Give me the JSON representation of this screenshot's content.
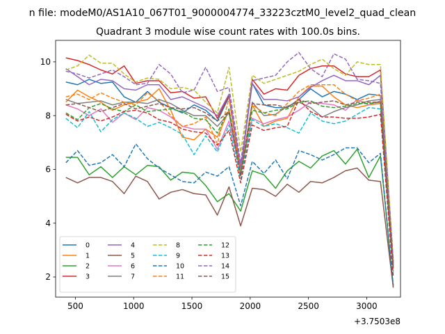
{
  "figure": {
    "suptitle": "n file: modeM0/AS1A10_067T01_9000004774_33223cztM0_level2_quad_clean",
    "title": "Quadrant 3 module wise count rates with 100.0s bins."
  },
  "chart_data": {
    "type": "line",
    "title": "Quadrant 3 module wise count rates with 100.0s bins.",
    "xlabel": "",
    "ylabel": "",
    "x_offset_label": "+3.7503e8",
    "xlim": [
      330,
      3290
    ],
    "ylim": [
      1.25,
      10.8
    ],
    "xticks": [
      500,
      1000,
      1500,
      2000,
      2500,
      3000
    ],
    "yticks": [
      2,
      4,
      6,
      8,
      10
    ],
    "grid": false,
    "legend_position": "lower-left",
    "legend_columns": 4,
    "x": [
      418,
      518,
      618,
      718,
      818,
      918,
      1018,
      1118,
      1218,
      1318,
      1418,
      1518,
      1618,
      1718,
      1818,
      1918,
      2018,
      2118,
      2218,
      2318,
      2418,
      2518,
      2618,
      2718,
      2818,
      2918,
      3018,
      3118,
      3228
    ],
    "series": [
      {
        "name": "0",
        "color": "#1f77b4",
        "style": "solid",
        "values": [
          9.25,
          9.15,
          9.35,
          9.2,
          9.25,
          8.7,
          8.5,
          8.9,
          8.5,
          8.3,
          8.1,
          8.4,
          8.2,
          7.8,
          8.7,
          6.0,
          9.2,
          8.4,
          8.3,
          8.3,
          8.6,
          9.0,
          8.7,
          8.9,
          8.8,
          8.6,
          8.8,
          8.75,
          2.5
        ]
      },
      {
        "name": "1",
        "color": "#ff7f0e",
        "style": "solid",
        "values": [
          8.5,
          8.95,
          8.7,
          8.5,
          8.2,
          8.4,
          8.5,
          8.6,
          9.0,
          8.2,
          7.2,
          7.1,
          7.5,
          7.2,
          8.2,
          5.8,
          8.4,
          7.6,
          7.8,
          7.9,
          8.7,
          9.1,
          9.1,
          8.7,
          8.4,
          8.3,
          8.4,
          8.45,
          2.4
        ]
      },
      {
        "name": "2",
        "color": "#2ca02c",
        "style": "solid",
        "values": [
          6.45,
          6.45,
          5.8,
          6.1,
          5.7,
          6.1,
          5.8,
          6.15,
          6.1,
          5.6,
          5.9,
          5.85,
          5.4,
          4.8,
          5.1,
          4.45,
          5.95,
          5.8,
          5.3,
          5.95,
          6.3,
          6.05,
          6.5,
          6.7,
          6.2,
          6.75,
          5.7,
          6.5,
          1.65
        ]
      },
      {
        "name": "3",
        "color": "#d62728",
        "style": "solid",
        "values": [
          10.15,
          10.05,
          9.9,
          9.7,
          9.55,
          9.85,
          9.2,
          9.3,
          9.3,
          8.85,
          8.9,
          8.65,
          8.7,
          7.9,
          8.75,
          5.9,
          9.35,
          8.8,
          9.0,
          8.95,
          9.5,
          9.75,
          9.85,
          9.85,
          9.55,
          9.45,
          9.45,
          9.7,
          2.6
        ]
      },
      {
        "name": "4",
        "color": "#9467bd",
        "style": "solid",
        "values": [
          9.75,
          9.45,
          9.15,
          9.35,
          9.3,
          9.0,
          8.95,
          9.15,
          9.15,
          8.6,
          8.7,
          8.5,
          8.3,
          8.0,
          8.8,
          6.05,
          9.2,
          8.6,
          8.6,
          8.55,
          8.7,
          9.05,
          9.3,
          9.5,
          9.3,
          9.3,
          9.15,
          9.5,
          2.45
        ]
      },
      {
        "name": "5",
        "color": "#8c564b",
        "style": "solid",
        "values": [
          5.7,
          5.5,
          5.7,
          5.7,
          5.55,
          5.1,
          5.75,
          5.55,
          4.9,
          5.15,
          5.25,
          5.1,
          5.05,
          4.3,
          5.35,
          3.9,
          5.3,
          5.25,
          5.0,
          5.45,
          5.15,
          5.55,
          5.5,
          5.7,
          5.95,
          6.05,
          5.6,
          5.55,
          1.6
        ]
      },
      {
        "name": "6",
        "color": "#e377c2",
        "style": "solid",
        "values": [
          8.4,
          8.25,
          8.0,
          8.25,
          7.75,
          8.1,
          7.85,
          8.3,
          8.2,
          7.95,
          7.6,
          7.5,
          7.5,
          6.75,
          7.8,
          5.9,
          7.9,
          7.7,
          7.85,
          7.95,
          8.2,
          8.5,
          8.45,
          8.4,
          8.2,
          8.6,
          8.4,
          8.55,
          2.3
        ]
      },
      {
        "name": "7",
        "color": "#7f7f7f",
        "style": "solid",
        "values": [
          8.6,
          8.45,
          8.5,
          8.55,
          8.4,
          8.5,
          8.5,
          8.45,
          8.6,
          8.45,
          8.2,
          8.0,
          8.0,
          7.6,
          8.1,
          5.85,
          8.5,
          8.0,
          8.05,
          8.35,
          8.5,
          8.3,
          7.95,
          8.15,
          8.3,
          8.4,
          8.55,
          8.6,
          2.4
        ]
      },
      {
        "name": "8",
        "color": "#bcbd22",
        "style": "dashed",
        "values": [
          9.7,
          9.85,
          10.25,
          9.95,
          9.95,
          9.55,
          9.25,
          9.4,
          9.35,
          9.0,
          9.05,
          8.95,
          8.5,
          8.1,
          9.8,
          6.65,
          9.5,
          9.2,
          9.35,
          9.5,
          9.65,
          9.9,
          10.1,
          9.75,
          9.5,
          10.0,
          9.9,
          9.9,
          2.55
        ]
      },
      {
        "name": "9",
        "color": "#17becf",
        "style": "dashed",
        "values": [
          7.9,
          7.55,
          8.15,
          7.4,
          7.85,
          8.1,
          7.9,
          7.6,
          7.75,
          7.55,
          7.3,
          6.55,
          7.25,
          6.65,
          7.65,
          5.65,
          7.85,
          7.6,
          7.7,
          7.55,
          7.35,
          8.1,
          7.8,
          7.7,
          7.8,
          8.05,
          8.3,
          8.25,
          2.2
        ]
      },
      {
        "name": "10",
        "color": "#1f77b4",
        "style": "dashed",
        "values": [
          6.25,
          6.7,
          6.15,
          6.25,
          6.55,
          6.1,
          6.95,
          6.4,
          6.05,
          5.8,
          5.55,
          5.5,
          5.9,
          5.75,
          6.1,
          4.65,
          6.3,
          5.85,
          6.35,
          5.65,
          6.7,
          6.55,
          6.35,
          6.55,
          6.8,
          6.8,
          6.25,
          6.6,
          1.7
        ]
      },
      {
        "name": "11",
        "color": "#ff7f0e",
        "style": "dashed",
        "values": [
          8.7,
          8.8,
          8.6,
          8.85,
          8.65,
          8.5,
          8.4,
          8.85,
          8.55,
          8.0,
          7.6,
          7.7,
          7.95,
          6.95,
          8.65,
          5.75,
          8.4,
          8.1,
          8.0,
          8.45,
          8.9,
          9.15,
          9.15,
          9.15,
          8.8,
          8.55,
          8.65,
          8.8,
          2.3
        ]
      },
      {
        "name": "12",
        "color": "#2ca02c",
        "style": "dashed",
        "values": [
          8.1,
          7.85,
          8.3,
          8.45,
          8.25,
          8.15,
          8.4,
          8.15,
          8.2,
          8.25,
          8.15,
          7.9,
          7.85,
          7.35,
          8.25,
          5.75,
          8.2,
          8.1,
          8.2,
          8.25,
          8.5,
          8.55,
          8.35,
          8.3,
          8.35,
          8.45,
          8.45,
          8.5,
          2.35
        ]
      },
      {
        "name": "13",
        "color": "#d62728",
        "style": "dashed",
        "values": [
          8.05,
          7.8,
          7.95,
          7.8,
          7.95,
          8.15,
          8.2,
          8.1,
          7.85,
          7.75,
          7.5,
          7.4,
          7.35,
          6.9,
          7.45,
          5.5,
          7.65,
          7.45,
          7.55,
          7.6,
          8.6,
          8.15,
          7.95,
          7.95,
          7.9,
          7.9,
          7.95,
          8.05,
          2.0
        ]
      },
      {
        "name": "14",
        "color": "#9467bd",
        "style": "dashed",
        "values": [
          9.65,
          9.55,
          9.4,
          9.55,
          9.7,
          9.45,
          9.15,
          9.2,
          9.9,
          9.55,
          8.85,
          8.95,
          9.8,
          8.9,
          9.05,
          6.25,
          9.3,
          9.4,
          9.5,
          10.0,
          10.35,
          9.75,
          9.45,
          10.3,
          10.1,
          9.35,
          9.3,
          9.2,
          2.55
        ]
      },
      {
        "name": "15",
        "color": "#8c564b",
        "style": "dashed",
        "values": [
          8.4,
          8.45,
          8.3,
          8.15,
          8.3,
          8.45,
          8.25,
          8.35,
          8.45,
          8.3,
          8.25,
          8.3,
          8.1,
          7.8,
          8.15,
          5.75,
          8.45,
          8.4,
          8.4,
          8.3,
          8.6,
          8.45,
          8.5,
          8.55,
          8.4,
          8.5,
          8.5,
          8.5,
          2.3
        ]
      }
    ]
  }
}
